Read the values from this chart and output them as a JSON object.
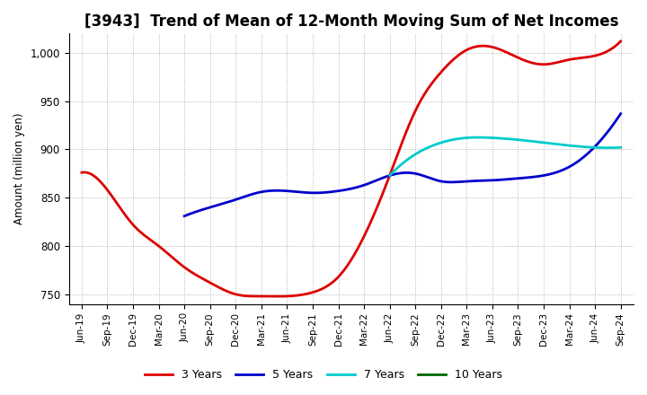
{
  "title": "[3943]  Trend of Mean of 12-Month Moving Sum of Net Incomes",
  "ylabel": "Amount (million yen)",
  "ylim": [
    740,
    1020
  ],
  "yticks": [
    750,
    800,
    850,
    900,
    950,
    1000
  ],
  "ytick_labels": [
    "750",
    "800",
    "850",
    "900",
    "950",
    "1,000"
  ],
  "x_labels": [
    "Jun-19",
    "Sep-19",
    "Dec-19",
    "Mar-20",
    "Jun-20",
    "Sep-20",
    "Dec-20",
    "Mar-21",
    "Jun-21",
    "Sep-21",
    "Dec-21",
    "Mar-22",
    "Jun-22",
    "Sep-22",
    "Dec-22",
    "Mar-23",
    "Jun-23",
    "Sep-23",
    "Dec-23",
    "Mar-24",
    "Jun-24",
    "Sep-24"
  ],
  "series": {
    "3 Years": {
      "color": "#dd0000",
      "values": [
        876,
        858,
        822,
        800,
        778,
        762,
        750,
        748,
        748,
        752,
        768,
        810,
        873,
        940,
        980,
        1003,
        1006,
        995,
        988,
        993,
        997,
        1012
      ]
    },
    "5 Years": {
      "color": "#0000cc",
      "values": [
        null,
        null,
        null,
        null,
        831,
        840,
        848,
        856,
        857,
        855,
        857,
        863,
        873,
        875,
        867,
        867,
        868,
        870,
        873,
        882,
        903,
        937
      ]
    },
    "7 Years": {
      "color": "#00cccc",
      "values": [
        null,
        null,
        null,
        null,
        null,
        null,
        null,
        null,
        null,
        null,
        null,
        null,
        873,
        895,
        907,
        912,
        912,
        910,
        907,
        904,
        902,
        902
      ]
    },
    "10 Years": {
      "color": "#006600",
      "values": [
        null,
        null,
        null,
        null,
        null,
        null,
        null,
        null,
        null,
        null,
        null,
        null,
        null,
        null,
        null,
        null,
        null,
        null,
        null,
        null,
        null,
        null
      ]
    }
  },
  "legend_order": [
    "3 Years",
    "5 Years",
    "7 Years",
    "10 Years"
  ],
  "background_color": "#ffffff",
  "grid_color": "#999999",
  "title_fontsize": 12,
  "axis_fontsize": 8,
  "legend_fontsize": 9
}
